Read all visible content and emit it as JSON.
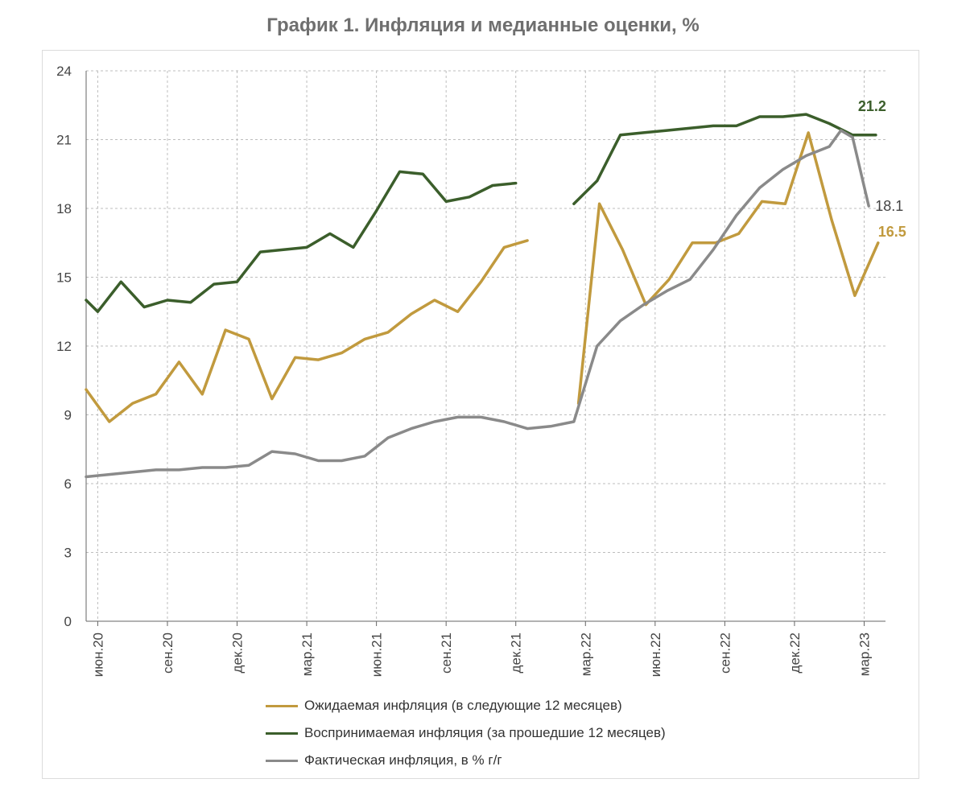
{
  "chart_data": {
    "type": "line",
    "title": "График 1. Инфляция и медианные оценки, %",
    "ylim": [
      0,
      24
    ],
    "yticks": [
      "0",
      "3",
      "6",
      "9",
      "12",
      "15",
      "18",
      "21",
      "24"
    ],
    "grid": true,
    "legend_position": "bottom",
    "x_tick_labels": [
      {
        "label": "июн.20",
        "x": 0
      },
      {
        "label": "сен.20",
        "x": 3
      },
      {
        "label": "дек.20",
        "x": 6
      },
      {
        "label": "мар.21",
        "x": 9
      },
      {
        "label": "июн.21",
        "x": 12
      },
      {
        "label": "сен.21",
        "x": 15
      },
      {
        "label": "дек.21",
        "x": 18
      },
      {
        "label": "мар.22",
        "x": 21
      },
      {
        "label": "июн.22",
        "x": 24
      },
      {
        "label": "сен.22",
        "x": 27
      },
      {
        "label": "дек.22",
        "x": 30
      },
      {
        "label": "мар.23",
        "x": 33
      }
    ],
    "series": [
      {
        "name": "Ожидаемая инфляция (в следующие 12 месяцев)",
        "color": "#c19a3e",
        "end_label": "16.5",
        "points": [
          [
            -0.5,
            10.1
          ],
          [
            0.5,
            8.7
          ],
          [
            1.5,
            9.5
          ],
          [
            2.5,
            9.9
          ],
          [
            3.5,
            11.3
          ],
          [
            4.5,
            9.9
          ],
          [
            5.5,
            12.7
          ],
          [
            6.5,
            12.3
          ],
          [
            7.5,
            9.7
          ],
          [
            8.5,
            11.5
          ],
          [
            9.5,
            11.4
          ],
          [
            10.5,
            11.7
          ],
          [
            11.5,
            12.3
          ],
          [
            12.5,
            12.6
          ],
          [
            13.5,
            13.4
          ],
          [
            14.5,
            14.0
          ],
          [
            15.5,
            13.5
          ],
          [
            16.5,
            14.8
          ],
          [
            17.5,
            16.3
          ],
          [
            18.5,
            16.6
          ],
          null,
          [
            20.7,
            9.5
          ],
          [
            21.6,
            18.2
          ],
          [
            22.6,
            16.2
          ],
          [
            23.6,
            13.8
          ],
          [
            24.6,
            14.9
          ],
          [
            25.6,
            16.5
          ],
          [
            26.6,
            16.5
          ],
          [
            27.6,
            16.9
          ],
          [
            28.6,
            18.3
          ],
          [
            29.6,
            18.2
          ],
          [
            30.6,
            21.3
          ],
          [
            31.6,
            17.5
          ],
          [
            32.6,
            14.2
          ],
          [
            33.6,
            16.5
          ]
        ]
      },
      {
        "name": "Воспринимаемая инфляция (за прошедшие 12 месяцев)",
        "color": "#3b5e2b",
        "end_label": "21.2",
        "points": [
          [
            -0.5,
            14.0
          ],
          [
            0.0,
            13.5
          ],
          [
            1.0,
            14.8
          ],
          [
            2.0,
            13.7
          ],
          [
            3.0,
            14.0
          ],
          [
            4.0,
            13.9
          ],
          [
            5.0,
            14.7
          ],
          [
            6.0,
            14.8
          ],
          [
            7.0,
            16.1
          ],
          [
            8.0,
            16.2
          ],
          [
            9.0,
            16.3
          ],
          [
            10.0,
            16.9
          ],
          [
            11.0,
            16.3
          ],
          [
            12.0,
            17.9
          ],
          [
            13.0,
            19.6
          ],
          [
            14.0,
            19.5
          ],
          [
            15.0,
            18.3
          ],
          [
            16.0,
            18.5
          ],
          [
            17.0,
            19.0
          ],
          [
            18.0,
            19.1
          ],
          null,
          [
            20.5,
            18.2
          ],
          [
            21.5,
            19.2
          ],
          [
            22.5,
            21.2
          ],
          [
            23.5,
            21.3
          ],
          [
            24.5,
            21.4
          ],
          [
            25.5,
            21.5
          ],
          [
            26.5,
            21.6
          ],
          [
            27.5,
            21.6
          ],
          [
            28.5,
            22.0
          ],
          [
            29.5,
            22.0
          ],
          [
            30.5,
            22.1
          ],
          [
            31.5,
            21.7
          ],
          [
            32.5,
            21.2
          ],
          [
            33.5,
            21.2
          ]
        ]
      },
      {
        "name": "Фактическая инфляция, в % г/г",
        "color": "#8a8a8a",
        "end_label": "18.1",
        "points": [
          [
            -0.5,
            6.3
          ],
          [
            0.5,
            6.4
          ],
          [
            1.5,
            6.5
          ],
          [
            2.5,
            6.6
          ],
          [
            3.5,
            6.6
          ],
          [
            4.5,
            6.7
          ],
          [
            5.5,
            6.7
          ],
          [
            6.5,
            6.8
          ],
          [
            7.5,
            7.4
          ],
          [
            8.5,
            7.3
          ],
          [
            9.5,
            7.0
          ],
          [
            10.5,
            7.0
          ],
          [
            11.5,
            7.2
          ],
          [
            12.5,
            8.0
          ],
          [
            13.5,
            8.4
          ],
          [
            14.5,
            8.7
          ],
          [
            15.5,
            8.9
          ],
          [
            16.5,
            8.9
          ],
          [
            17.5,
            8.7
          ],
          [
            18.5,
            8.4
          ],
          [
            19.5,
            8.5
          ],
          [
            20.5,
            8.7
          ],
          [
            21.5,
            12.0
          ],
          [
            22.5,
            13.1
          ],
          [
            23.5,
            13.8
          ],
          [
            24.5,
            14.4
          ],
          [
            25.5,
            14.9
          ],
          [
            26.5,
            16.2
          ],
          [
            27.5,
            17.7
          ],
          [
            28.5,
            18.9
          ],
          [
            29.5,
            19.7
          ],
          [
            30.5,
            20.3
          ],
          [
            31.5,
            20.7
          ],
          [
            32.0,
            21.4
          ],
          [
            32.5,
            21.1
          ],
          [
            33.2,
            18.1
          ]
        ]
      }
    ]
  }
}
